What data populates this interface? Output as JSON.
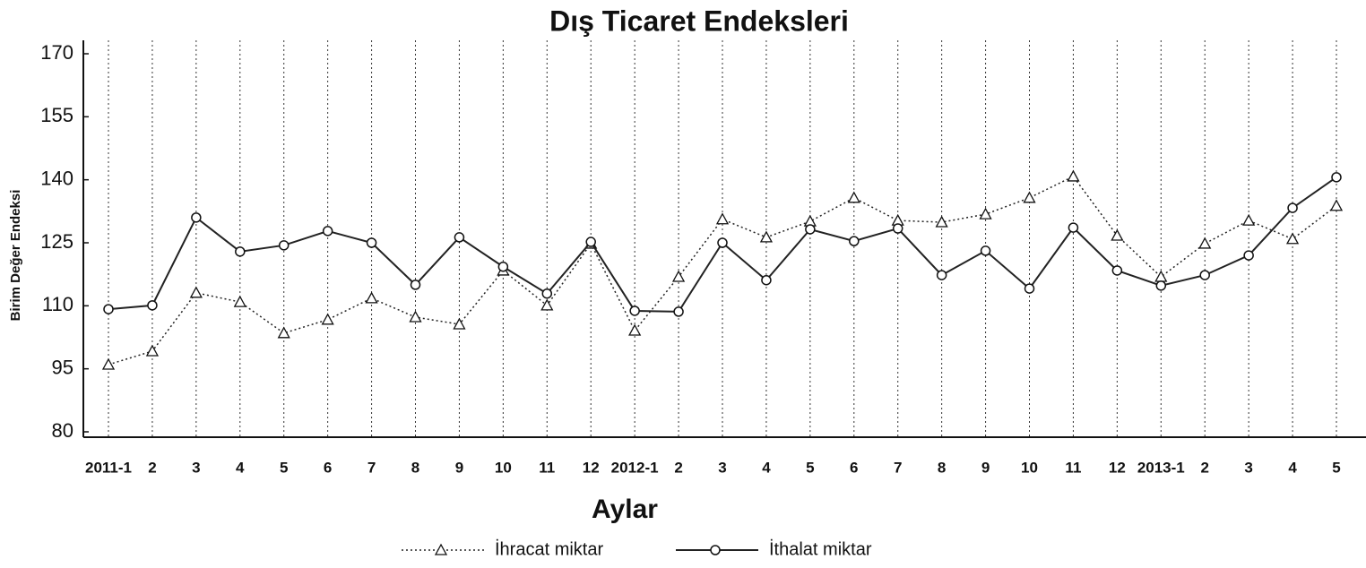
{
  "chart_data": {
    "type": "line",
    "title": "Dış Ticaret Endeksleri",
    "xlabel": "Aylar",
    "ylabel": "Birim Değer Endeksi",
    "categories": [
      "2011-1",
      "2",
      "3",
      "4",
      "5",
      "6",
      "7",
      "8",
      "9",
      "10",
      "11",
      "12",
      "2012-1",
      "2",
      "3",
      "4",
      "5",
      "6",
      "7",
      "8",
      "9",
      "10",
      "11",
      "12",
      "2013-1",
      "2",
      "3",
      "4",
      "5"
    ],
    "series": [
      {
        "name": "İhracat miktar",
        "color": "#222222",
        "dash": "dotted",
        "marker": "triangle",
        "values": [
          96.0,
          99.2,
          113.1,
          110.9,
          103.5,
          106.7,
          111.8,
          107.3,
          105.6,
          118.4,
          110.1,
          124.8,
          104.1,
          116.9,
          130.6,
          126.3,
          130.1,
          135.7,
          130.3,
          129.9,
          131.8,
          135.7,
          140.8,
          126.7,
          116.9,
          124.8,
          130.3,
          125.9,
          133.8
        ]
      },
      {
        "name": "İthalat miktar",
        "color": "#222222",
        "dash": "solid",
        "marker": "circle",
        "values": [
          109.2,
          110.1,
          131.0,
          122.9,
          124.4,
          127.8,
          125.0,
          115.0,
          126.3,
          119.3,
          112.9,
          125.2,
          108.8,
          108.6,
          125.0,
          116.1,
          128.2,
          125.4,
          128.4,
          117.3,
          123.1,
          114.1,
          128.6,
          118.4,
          114.8,
          117.3,
          122.0,
          133.3,
          140.6
        ]
      }
    ],
    "ylim": [
      80,
      170
    ],
    "yticks": [
      80,
      95,
      110,
      125,
      140,
      155,
      170
    ],
    "grid": "x"
  }
}
